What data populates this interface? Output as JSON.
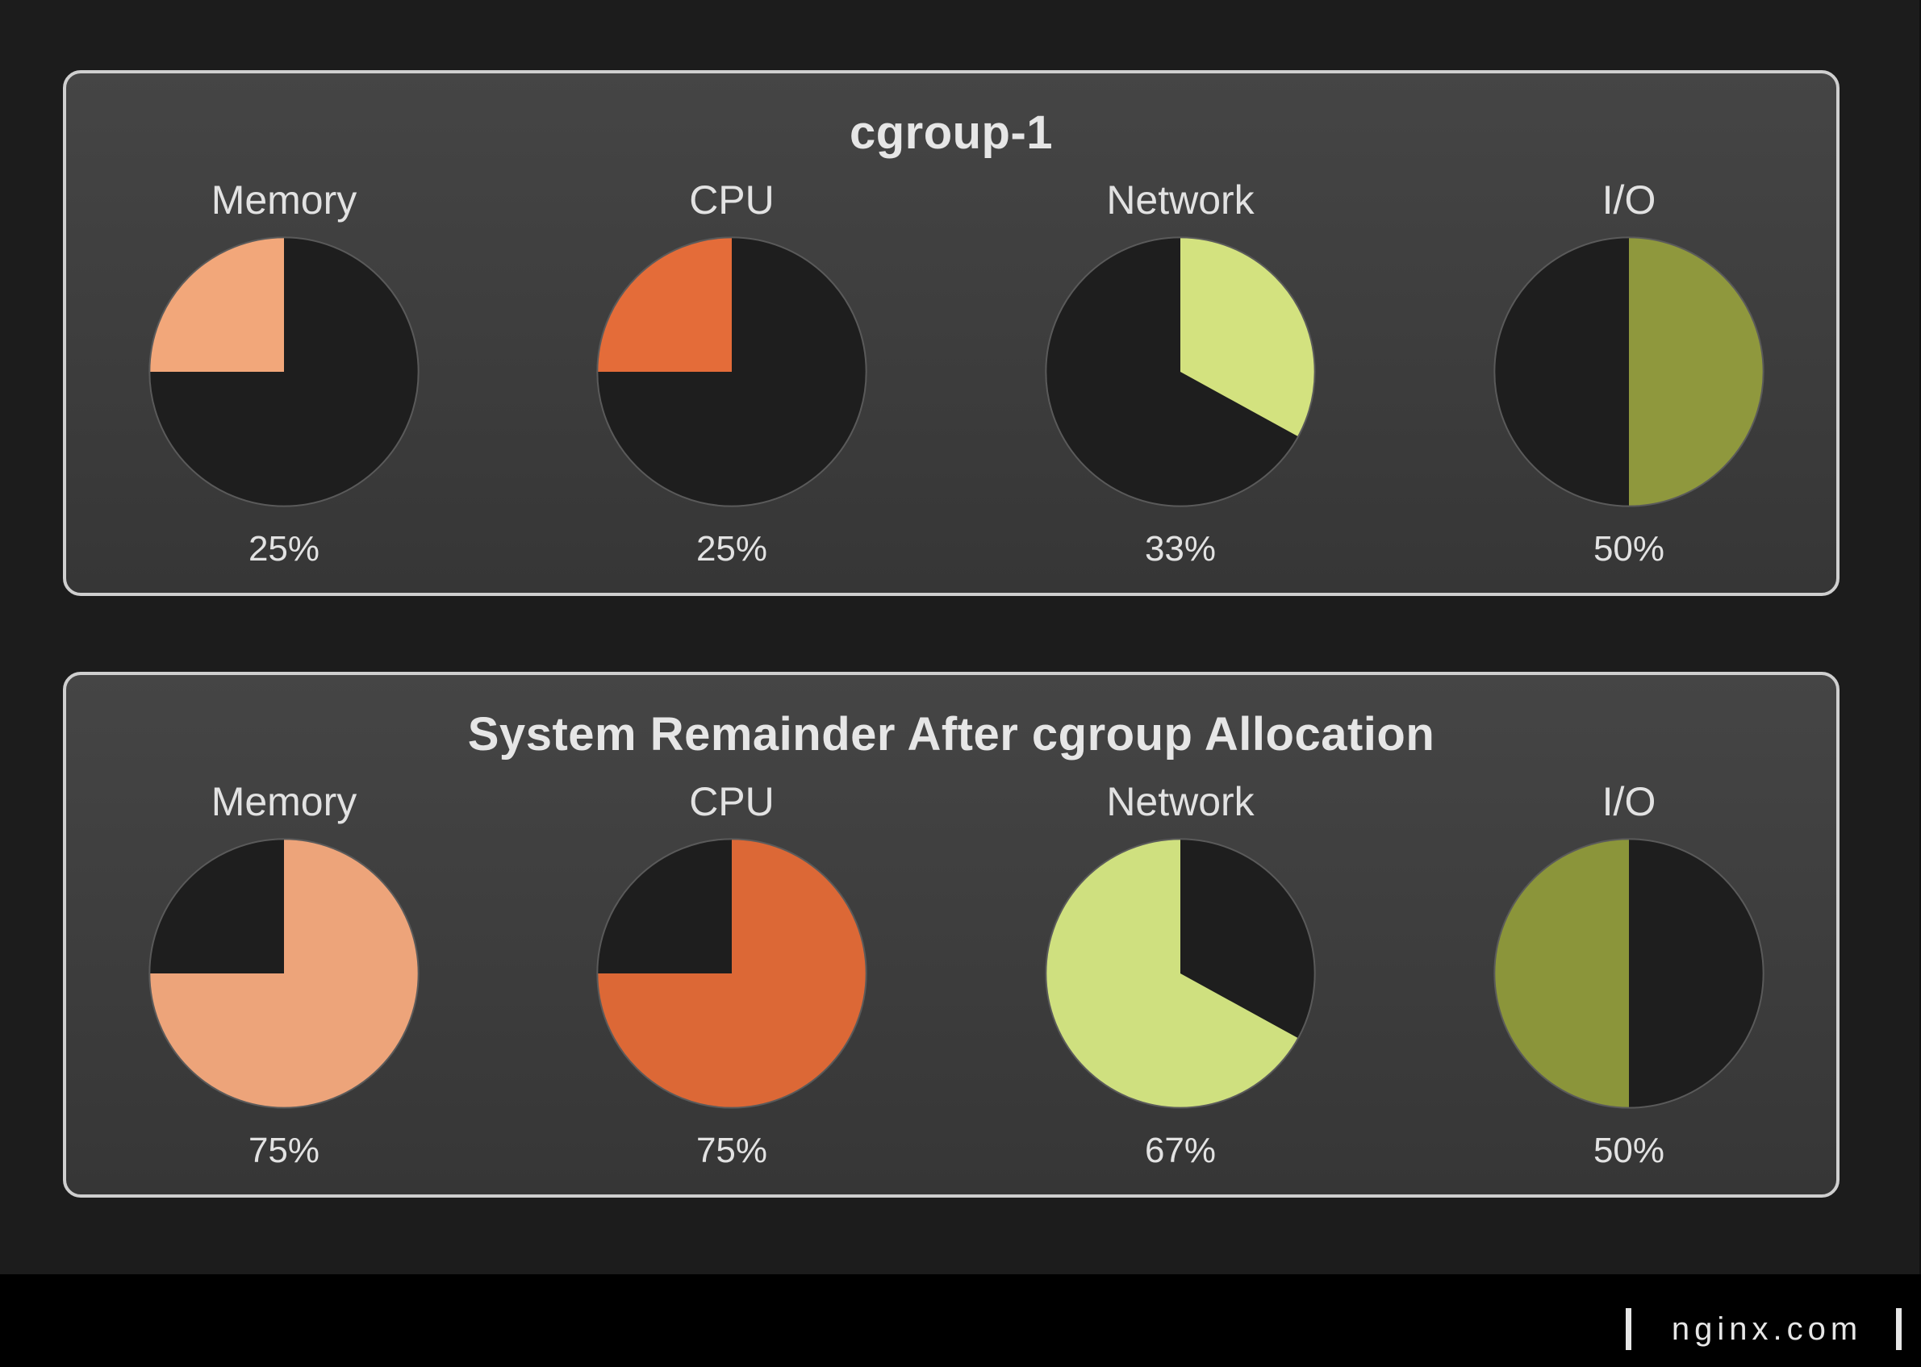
{
  "chart_data": [
    {
      "type": "pie",
      "title": "cgroup-1",
      "charts": [
        {
          "label": "Memory",
          "value": 25,
          "value_label": "25%",
          "start": "left",
          "color": "#f2a77a"
        },
        {
          "label": "CPU",
          "value": 25,
          "value_label": "25%",
          "start": "left",
          "color": "#e46c39"
        },
        {
          "label": "Network",
          "value": 33,
          "value_label": "33%",
          "start": "right",
          "color": "#d3e27f"
        },
        {
          "label": "I/O",
          "value": 50,
          "value_label": "50%",
          "start": "right",
          "color": "#8f983d"
        }
      ]
    },
    {
      "type": "pie",
      "title": "System Remainder After cgroup Allocation",
      "charts": [
        {
          "label": "Memory",
          "value": 75,
          "value_label": "75%",
          "start": "right",
          "color": "#eda47a"
        },
        {
          "label": "CPU",
          "value": 75,
          "value_label": "75%",
          "start": "right",
          "color": "#dc6836"
        },
        {
          "label": "Network",
          "value": 67,
          "value_label": "67%",
          "start": "left",
          "color": "#cfe07f"
        },
        {
          "label": "I/O",
          "value": 50,
          "value_label": "50%",
          "start": "left",
          "color": "#8b953a"
        }
      ]
    }
  ],
  "colors": {
    "pie_empty": "#1e1e1e",
    "pie_outline": "#5a5a5a"
  },
  "footer": {
    "brand": "nginx.com"
  }
}
